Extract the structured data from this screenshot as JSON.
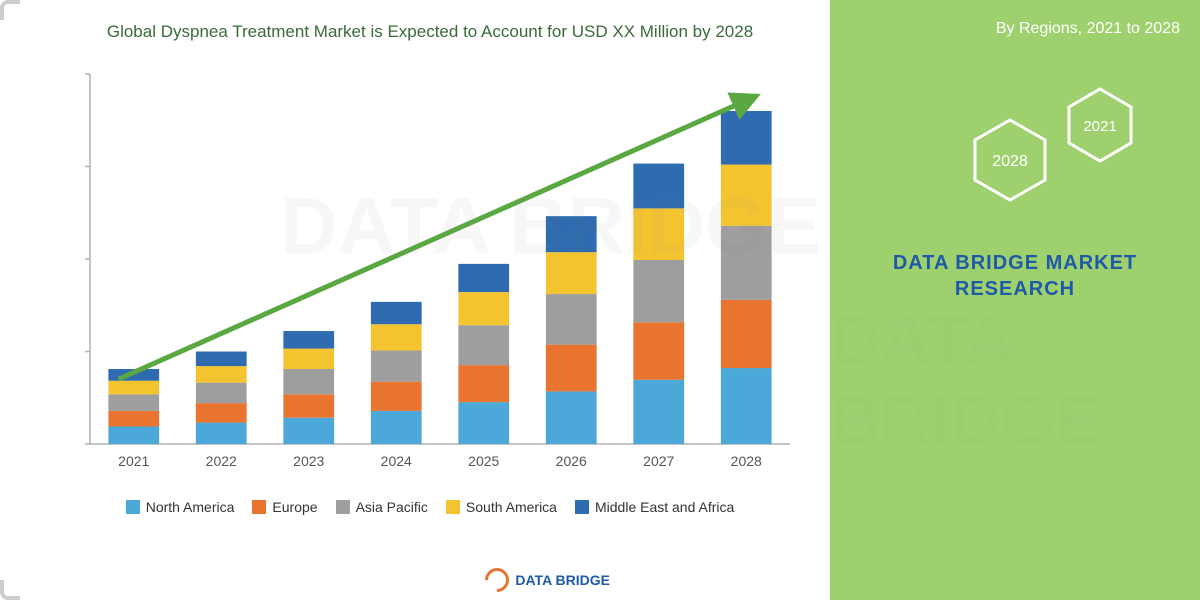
{
  "chart": {
    "type": "stacked-bar",
    "title": "Global Dyspnea Treatment Market is Expected to Account for USD XX Million by 2028",
    "categories": [
      "2021",
      "2022",
      "2023",
      "2024",
      "2025",
      "2026",
      "2027",
      "2028"
    ],
    "series": [
      {
        "name": "North America",
        "color": "#4ba8d8",
        "values": [
          18,
          22,
          27,
          34,
          43,
          54,
          66,
          78
        ]
      },
      {
        "name": "Europe",
        "color": "#e97430",
        "values": [
          16,
          20,
          24,
          30,
          38,
          48,
          59,
          70
        ]
      },
      {
        "name": "Asia Pacific",
        "color": "#9e9e9e",
        "values": [
          17,
          21,
          26,
          32,
          41,
          52,
          64,
          76
        ]
      },
      {
        "name": "South America",
        "color": "#f4c430",
        "values": [
          14,
          17,
          21,
          27,
          34,
          43,
          53,
          63
        ]
      },
      {
        "name": "Middle East and Africa",
        "color": "#2e6bb0",
        "values": [
          12,
          15,
          18,
          23,
          29,
          37,
          46,
          55
        ]
      }
    ],
    "ylim": [
      0,
      380
    ],
    "bar_width": 0.58,
    "background_color": "#ffffff",
    "axis_color": "#b0b0b0",
    "label_fontsize": 14,
    "label_color": "#555555",
    "title_fontsize": 17,
    "title_color": "#3a6a3a",
    "arrow_color": "#5ba843",
    "arrow_width": 5
  },
  "legend": {
    "fontsize": 14,
    "text_color": "#333333"
  },
  "side": {
    "title": "By Regions, 2021 to 2028",
    "background_color": "#9ed16e",
    "brand": "DATA BRIDGE MARKET RESEARCH",
    "brand_color": "#1e5aa8",
    "hex_labels": [
      "2028",
      "2021"
    ],
    "hex_stroke": "#ffffff"
  },
  "watermark": "DATA BRIDGE",
  "bottom_logo": "DATA BRIDGE"
}
